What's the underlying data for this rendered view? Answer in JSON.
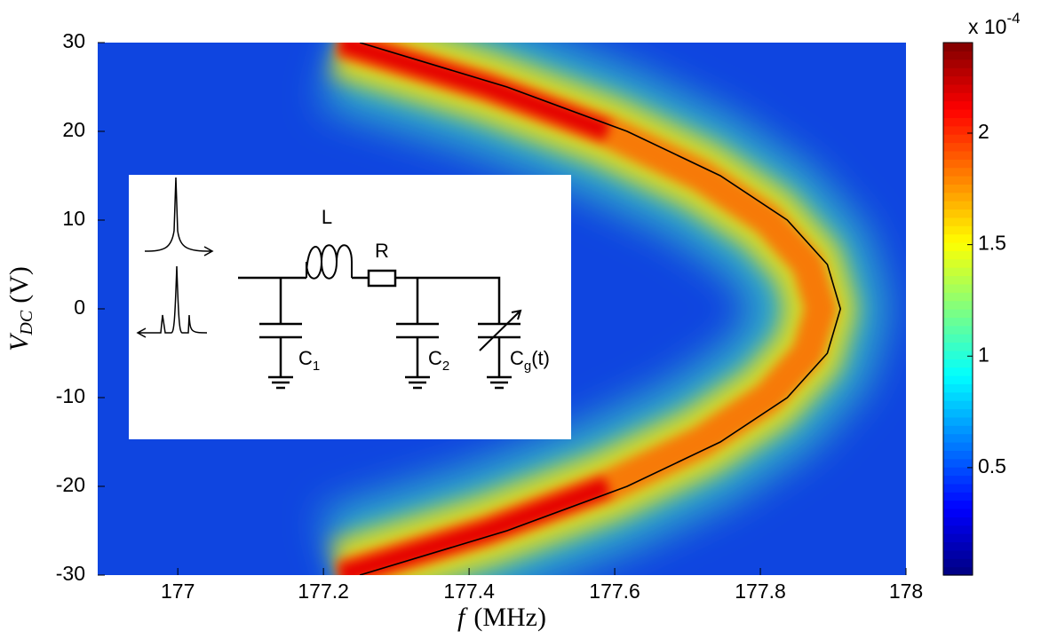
{
  "chart_data": {
    "type": "heatmap",
    "x_label": {
      "symbol": "f",
      "unit": "(MHz)"
    },
    "y_label": {
      "symbol": "V",
      "sub": "DC",
      "unit": "(V)"
    },
    "xlim": [
      176.89,
      178
    ],
    "xticks": [
      177,
      177.2,
      177.4,
      177.6,
      177.8,
      178
    ],
    "ylim": [
      -30,
      30
    ],
    "yticks": [
      -30,
      -20,
      -10,
      0,
      10,
      20,
      30
    ],
    "colormap": "jet",
    "background_color": "#0f45e0",
    "fit_curve": {
      "color": "#000000",
      "x": [
        177.25,
        177.452,
        177.617,
        177.745,
        177.837,
        177.892,
        177.91,
        177.892,
        177.837,
        177.745,
        177.617,
        177.452,
        177.25
      ],
      "y": [
        -30,
        -25,
        -20,
        -15,
        -10,
        -5,
        0,
        5,
        10,
        15,
        20,
        25,
        30
      ]
    },
    "colorbar": {
      "clim": [
        0.018,
        2.406
      ],
      "ticks": [
        0.5,
        1,
        1.5,
        2
      ],
      "multiplier": "x 10",
      "exponent": "-4"
    },
    "inset": {
      "components": [
        {
          "name": "L"
        },
        {
          "name": "R"
        },
        {
          "name": "C",
          "sub": "1"
        },
        {
          "name": "C",
          "sub": "2"
        },
        {
          "name": "C",
          "sub": "g",
          "suffix": "(t)"
        }
      ]
    }
  }
}
